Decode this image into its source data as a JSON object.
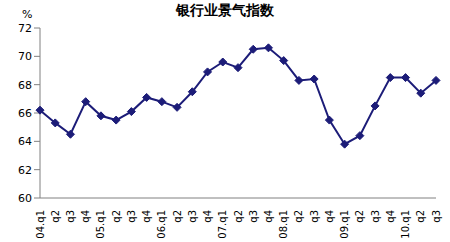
{
  "chart_data": {
    "type": "line",
    "title": "银行业景气指数",
    "y_label": "%",
    "categories": [
      "04.q1",
      "q2",
      "q3",
      "q4",
      "05.q1",
      "q2",
      "q3",
      "q4",
      "06.q1",
      "q2",
      "q3",
      "q4",
      "07.q1",
      "q2",
      "q3",
      "q4",
      "08.q1",
      "q2",
      "q3",
      "q4",
      "09.q1",
      "q2",
      "q3",
      "q4",
      "10.q1",
      "q2",
      "q3"
    ],
    "values": [
      66.2,
      65.3,
      64.5,
      66.8,
      65.8,
      65.5,
      66.1,
      67.1,
      66.8,
      66.4,
      67.5,
      68.9,
      69.6,
      69.2,
      70.5,
      70.6,
      69.7,
      68.3,
      68.4,
      65.5,
      63.8,
      64.4,
      66.5,
      68.5,
      68.5,
      67.4,
      68.3
    ],
    "color": "#1c1c78",
    "marker": "diamond",
    "line_style": "solid",
    "ylim": [
      60,
      72
    ],
    "yticks": [
      60,
      62,
      64,
      66,
      68,
      70,
      72
    ],
    "grid": false
  }
}
